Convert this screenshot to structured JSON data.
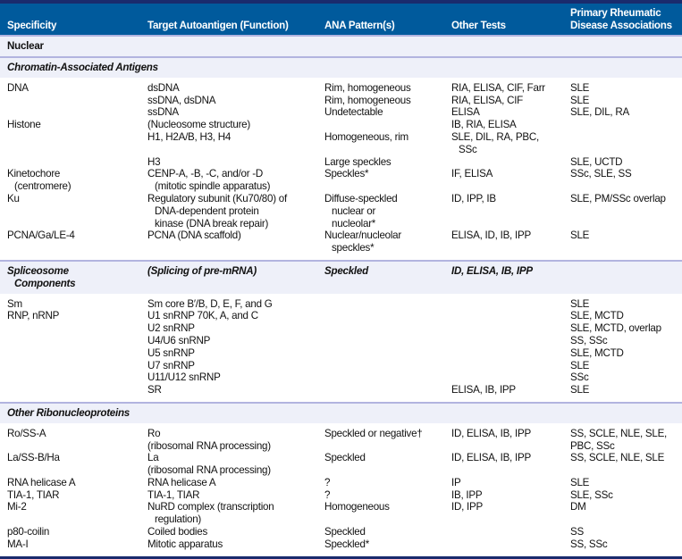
{
  "header": [
    "Specificity",
    "Target Autoantigen (Function)",
    "ANA Pattern(s)",
    "Other Tests",
    "Primary Rheumatic\nDisease Associations"
  ],
  "groups": [
    {
      "section": "Nuclear",
      "italic": false,
      "rows": []
    },
    {
      "section": "Chromatin-Associated Antigens",
      "italic": true,
      "rows": [
        [
          [
            "DNA"
          ],
          [
            "dsDNA"
          ],
          [
            "Rim, homogeneous"
          ],
          [
            "RIA, ELISA, CIF, Farr"
          ],
          [
            "SLE"
          ]
        ],
        [
          [],
          [
            "ssDNA, dsDNA"
          ],
          [
            "Rim, homogeneous"
          ],
          [
            "RIA, ELISA, CIF"
          ],
          [
            "SLE"
          ]
        ],
        [
          [],
          [
            "ssDNA"
          ],
          [
            "Undetectable"
          ],
          [
            "ELISA"
          ],
          [
            "SLE, DIL, RA"
          ]
        ],
        [
          [
            "Histone"
          ],
          [
            "(Nucleosome structure)"
          ],
          [],
          [
            "IB, RIA, ELISA"
          ],
          []
        ],
        [
          [],
          [
            "H1, H2A/B, H3, H4"
          ],
          [
            "Homogeneous, rim"
          ],
          [
            "SLE, DIL, RA, PBC,",
            "SSc"
          ],
          []
        ],
        [
          [],
          [
            "H3"
          ],
          [
            "Large speckles"
          ],
          [],
          [
            "SLE, UCTD"
          ]
        ],
        [
          [
            "Kinetochore",
            "(centromere)"
          ],
          [
            "CENP-A, -B, -C, and/or -D",
            "(mitotic spindle apparatus)"
          ],
          [
            "Speckles*"
          ],
          [
            "IF, ELISA"
          ],
          [
            "SSc, SLE, SS"
          ]
        ],
        [
          [
            "Ku"
          ],
          [
            "Regulatory subunit (Ku70/80) of",
            "DNA-dependent protein",
            "kinase (DNA break repair)"
          ],
          [
            "Diffuse-speckled",
            "nuclear or",
            "nucleolar*"
          ],
          [
            "ID, IPP, IB"
          ],
          [
            "SLE, PM/SSc overlap"
          ]
        ],
        [
          [
            "PCNA/Ga/LE-4"
          ],
          [
            "PCNA (DNA scaffold)"
          ],
          [
            "Nuclear/nucleolar",
            "speckles*"
          ],
          [
            "ELISA, ID, IB, IPP"
          ],
          [
            "SLE"
          ]
        ]
      ]
    },
    {
      "section": "Spliceosome Components",
      "italic": true,
      "section_cells": [
        [
          "Spliceosome",
          "Components"
        ],
        [
          "(Splicing of pre-mRNA)"
        ],
        [
          "Speckled"
        ],
        [
          "ID, ELISA, IB, IPP"
        ],
        []
      ],
      "rows": [
        [
          [
            "Sm"
          ],
          [
            "Sm core B′/B, D, E, F, and G"
          ],
          [],
          [],
          [
            "SLE"
          ]
        ],
        [
          [
            "RNP, nRNP"
          ],
          [
            "U1 snRNP 70K, A, and C"
          ],
          [],
          [],
          [
            "SLE, MCTD"
          ]
        ],
        [
          [],
          [
            "U2 snRNP"
          ],
          [],
          [],
          [
            "SLE, MCTD, overlap"
          ]
        ],
        [
          [],
          [
            "U4/U6 snRNP"
          ],
          [],
          [],
          [
            "SS, SSc"
          ]
        ],
        [
          [],
          [
            "U5 snRNP"
          ],
          [],
          [],
          [
            "SLE, MCTD"
          ]
        ],
        [
          [],
          [
            "U7 snRNP"
          ],
          [],
          [],
          [
            "SLE"
          ]
        ],
        [
          [],
          [
            "U11/U12 snRNP"
          ],
          [],
          [],
          [
            "SSc"
          ]
        ],
        [
          [],
          [
            "SR"
          ],
          [],
          [
            "ELISA, IB, IPP"
          ],
          [
            "SLE"
          ]
        ]
      ]
    },
    {
      "section": "Other Ribonucleoproteins",
      "italic": true,
      "rows": [
        [
          [
            "Ro/SS-A"
          ],
          [
            "Ro"
          ],
          [
            "Speckled or negative†"
          ],
          [
            "ID, ELISA, IB, IPP"
          ],
          [
            "SS, SCLE, NLE, SLE,"
          ]
        ],
        [
          [],
          [
            "(ribosomal RNA processing)"
          ],
          [],
          [],
          [
            "PBC, SSc"
          ]
        ],
        [
          [
            "La/SS-B/Ha"
          ],
          [
            "La"
          ],
          [
            "Speckled"
          ],
          [
            "ID, ELISA, IB, IPP"
          ],
          [
            "SS, SCLE, NLE, SLE"
          ]
        ],
        [
          [],
          [
            "(ribosomal RNA processing)"
          ],
          [],
          [],
          []
        ],
        [
          [
            "RNA helicase A"
          ],
          [
            "RNA helicase A"
          ],
          [
            "?"
          ],
          [
            "IP"
          ],
          [
            "SLE"
          ]
        ],
        [
          [
            "TIA-1, TIAR"
          ],
          [
            "TIA-1, TIAR"
          ],
          [
            "?"
          ],
          [
            "IB, IPP"
          ],
          [
            "SLE, SSc"
          ]
        ],
        [
          [
            "Mi-2"
          ],
          [
            "NuRD complex (transcription",
            "regulation)"
          ],
          [
            "Homogeneous"
          ],
          [
            "ID, IPP"
          ],
          [
            "DM"
          ]
        ],
        [
          [
            "p80-coilin"
          ],
          [
            "Coiled bodies"
          ],
          [
            "Speckled"
          ],
          [],
          [
            "SS"
          ]
        ],
        [
          [
            "MA-I"
          ],
          [
            "Mitotic apparatus"
          ],
          [
            "Speckled*"
          ],
          [],
          [
            "SS, SSc"
          ]
        ]
      ]
    }
  ],
  "colors": {
    "header_bg": "#005a9c",
    "border_dark": "#1a2b6d",
    "section_bg": "#eef0f9",
    "divider": "#b2b4df"
  }
}
